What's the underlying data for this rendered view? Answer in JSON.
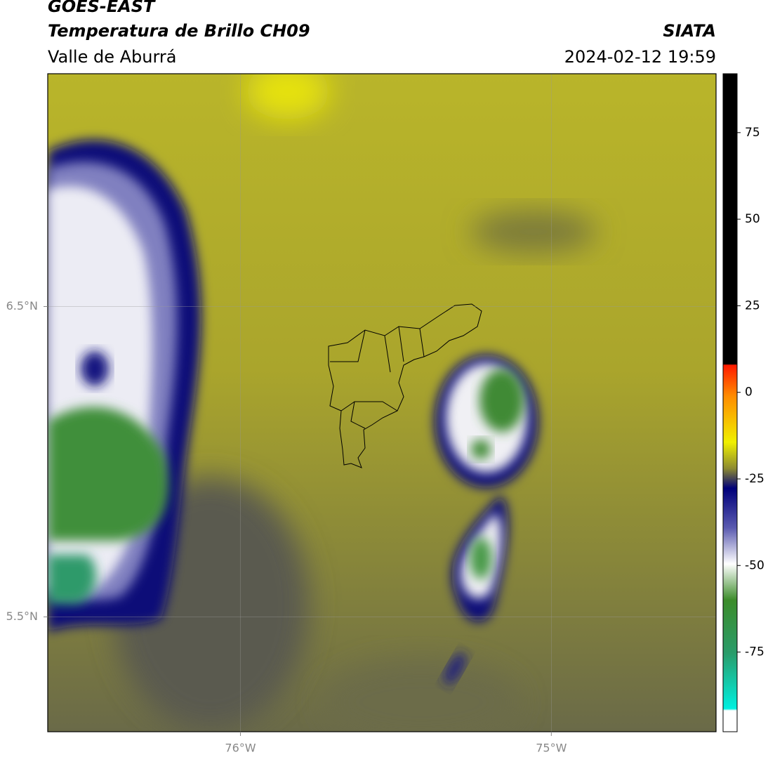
{
  "header": {
    "title": "GOES-EAST",
    "subtitle": "Temperatura de Brillo CH09",
    "region": "Valle de Aburrá",
    "source": "SIATA",
    "datetime": "2024-02-12 19:59"
  },
  "map": {
    "xlim": [
      -76.62,
      -74.47
    ],
    "ylim": [
      5.13,
      7.25
    ],
    "xticks": [
      {
        "value": -76,
        "label": "76°W"
      },
      {
        "value": -75,
        "label": "75°W"
      }
    ],
    "yticks": [
      {
        "value": 6.5,
        "label": "6.5°N"
      },
      {
        "value": 5.5,
        "label": "5.5°N"
      }
    ],
    "grid": true
  },
  "colorbar": {
    "lim": [
      -98,
      92
    ],
    "ticks": [
      75,
      50,
      25,
      0,
      -25,
      -50,
      -75
    ]
  }
}
